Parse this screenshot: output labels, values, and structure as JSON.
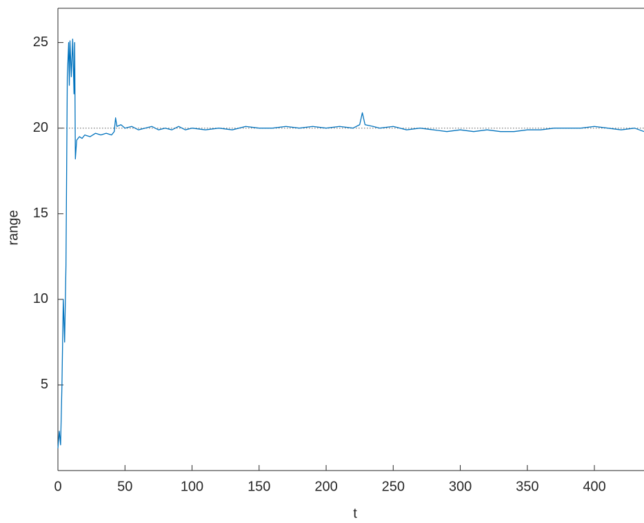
{
  "chart_data": {
    "type": "line",
    "x_label": "t",
    "y_label": "range",
    "xlim": [
      0,
      437
    ],
    "ylim": [
      0,
      27
    ],
    "xticks": [
      0,
      50,
      100,
      150,
      200,
      250,
      300,
      350,
      400
    ],
    "yticks": [
      5,
      10,
      15,
      20,
      25
    ],
    "grid": false,
    "series": [
      {
        "color": "#0072bd",
        "x": [
          0,
          1,
          2,
          3,
          4,
          5,
          6,
          7,
          8,
          8.5,
          9,
          10,
          11,
          12,
          12.5,
          13,
          14,
          16,
          18,
          20,
          24,
          28,
          32,
          36,
          40,
          42,
          43,
          44,
          47,
          50,
          55,
          60,
          65,
          70,
          75,
          80,
          85,
          90,
          95,
          100,
          110,
          120,
          130,
          140,
          150,
          160,
          170,
          180,
          190,
          200,
          210,
          220,
          225,
          227,
          229,
          235,
          240,
          250,
          260,
          270,
          280,
          290,
          300,
          310,
          320,
          330,
          340,
          350,
          360,
          370,
          380,
          390,
          400,
          410,
          420,
          430,
          437
        ],
        "values": [
          1.3,
          2.3,
          1.5,
          5,
          10,
          7.5,
          12,
          23,
          25,
          22.5,
          25.1,
          23,
          25.2,
          22,
          25,
          18.2,
          19.3,
          19.5,
          19.4,
          19.6,
          19.5,
          19.7,
          19.6,
          19.7,
          19.6,
          19.8,
          20.6,
          20.1,
          20.2,
          20.0,
          20.1,
          19.9,
          20.0,
          20.1,
          19.9,
          20.0,
          19.9,
          20.1,
          19.9,
          20.0,
          19.9,
          20.0,
          19.9,
          20.1,
          20.0,
          20.0,
          20.1,
          20.0,
          20.1,
          20.0,
          20.1,
          20.0,
          20.2,
          20.9,
          20.2,
          20.1,
          20.0,
          20.1,
          19.9,
          20.0,
          19.9,
          19.8,
          19.9,
          19.8,
          19.9,
          19.8,
          19.8,
          19.9,
          19.9,
          20.0,
          20.0,
          20.0,
          20.1,
          20.0,
          19.9,
          20.0,
          19.8
        ]
      },
      {
        "color": "#555555",
        "dash": "dotted",
        "x": [
          0,
          437
        ],
        "values": [
          20,
          20
        ]
      }
    ]
  }
}
